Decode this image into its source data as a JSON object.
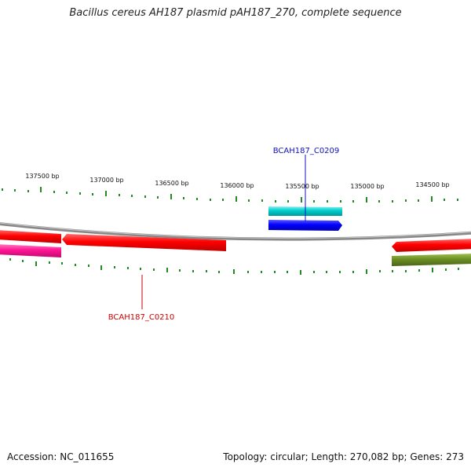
{
  "title": "Bacillus cereus AH187 plasmid pAH187_270, complete sequence",
  "ticks": {
    "labels": [
      "137500 bp",
      "137000 bp",
      "136500 bp",
      "136000 bp",
      "135500 bp",
      "135000 bp",
      "134500 bp"
    ],
    "color": "#228B22"
  },
  "backbone_color": "#888888",
  "genes": [
    {
      "label": "BCAH187_C0209",
      "label_color": "#1010c0"
    },
    {
      "label": "BCAH187_C0210",
      "label_color": "#cc0000"
    }
  ],
  "feature_colors": {
    "red": "#ff0000",
    "blue": "#0000ff",
    "cyan": "#00c8c8",
    "magenta": "#ff1493",
    "olive": "#6b8e23"
  },
  "footer": {
    "accession": "Accession: NC_011655",
    "summary": "Topology: circular; Length: 270,082 bp; Genes: 273"
  }
}
